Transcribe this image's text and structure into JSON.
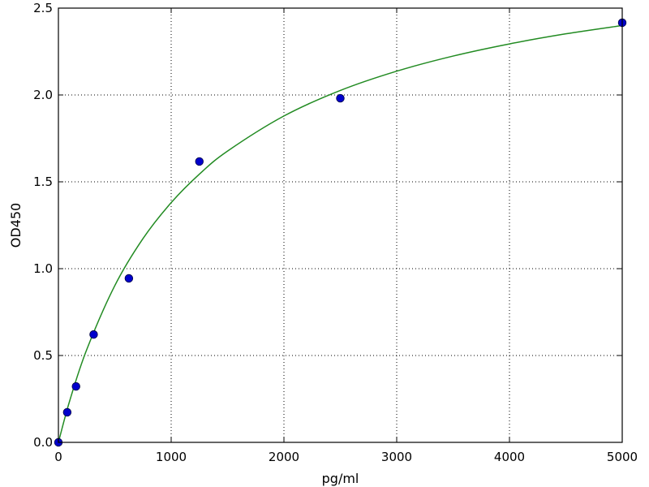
{
  "chart_data": {
    "type": "scatter",
    "title": "",
    "xlabel": "pg/ml",
    "ylabel": "OD450",
    "xlim": [
      0,
      5000
    ],
    "ylim": [
      0,
      2.5
    ],
    "xticks": [
      0,
      1000,
      2000,
      3000,
      4000,
      5000
    ],
    "xtick_labels": [
      "0",
      "1000",
      "2000",
      "3000",
      "4000",
      "5000"
    ],
    "yticks": [
      0,
      0.5,
      1.0,
      1.5,
      2.0,
      2.5
    ],
    "ytick_labels": [
      "0.0",
      "0.5",
      "1.0",
      "1.5",
      "2.0",
      "2.5"
    ],
    "grid": true,
    "points": {
      "x": [
        0,
        78.125,
        156.25,
        312.5,
        625,
        1250,
        2500,
        5000
      ],
      "y": [
        0.0,
        0.173,
        0.322,
        0.621,
        0.944,
        1.617,
        1.981,
        2.416
      ],
      "color": "#0000cc"
    },
    "fit_curve": {
      "x": [
        0,
        100,
        250,
        500,
        750,
        1000,
        1250,
        1500,
        2000,
        2500,
        3000,
        3500,
        4000,
        4500,
        5000
      ],
      "y": [
        0.0,
        0.239,
        0.532,
        0.902,
        1.173,
        1.38,
        1.544,
        1.677,
        1.879,
        2.026,
        2.137,
        2.224,
        2.294,
        2.352,
        2.4
      ],
      "color": "#228b22"
    }
  }
}
